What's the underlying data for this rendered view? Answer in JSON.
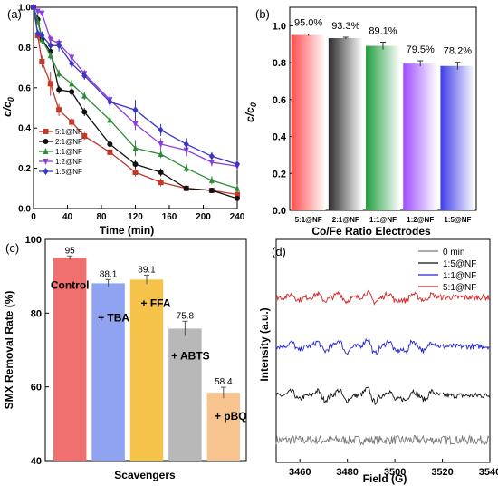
{
  "panels": {
    "a": {
      "label": "(a)",
      "legend": [
        "5:1@NF",
        "2:1@NF",
        "1:1@NF",
        "1:2@NF",
        "1:5@NF"
      ]
    },
    "b": {
      "label": "(b)"
    },
    "c": {
      "label": "(c)"
    },
    "d": {
      "label": "(d)",
      "legend": [
        "0 min",
        "1:5@NF",
        "1:1@NF",
        "5:1@NF"
      ]
    }
  },
  "chart_data": [
    {
      "id": "a",
      "type": "line",
      "xlabel": "Time (min)",
      "ylabel": "c/c0",
      "xlim": [
        0,
        240
      ],
      "ylim": [
        0,
        1.0
      ],
      "xticks": [
        0,
        40,
        80,
        120,
        160,
        200,
        240
      ],
      "yticks": [
        0.0,
        0.2,
        0.4,
        0.6,
        0.8,
        1.0
      ],
      "legend_position": "bottom-left",
      "x": [
        0,
        5,
        10,
        20,
        30,
        45,
        60,
        90,
        120,
        150,
        180,
        210,
        240
      ],
      "series": [
        {
          "name": "5:1@NF",
          "color": "#c0392b",
          "marker": "square",
          "values": [
            1.0,
            0.86,
            0.73,
            0.62,
            0.49,
            0.43,
            0.36,
            0.28,
            0.18,
            0.13,
            0.1,
            0.09,
            0.07
          ],
          "errors": [
            0,
            0.02,
            0.03,
            0.06,
            0.03,
            0.02,
            0.02,
            0.02,
            0.02,
            0.02,
            0.01,
            0.01,
            0.01
          ]
        },
        {
          "name": "2:1@NF",
          "color": "#111111",
          "marker": "circle",
          "values": [
            1.0,
            0.94,
            0.84,
            0.78,
            0.59,
            0.58,
            0.48,
            0.32,
            0.22,
            0.18,
            0.1,
            0.09,
            0.05
          ],
          "errors": [
            0,
            0.02,
            0.02,
            0.02,
            0.02,
            0.02,
            0.02,
            0.02,
            0.02,
            0.02,
            0.01,
            0.01,
            0.01
          ]
        },
        {
          "name": "1:1@NF",
          "color": "#2e8b3a",
          "marker": "triangle",
          "values": [
            1.0,
            0.93,
            0.84,
            0.76,
            0.67,
            0.62,
            0.56,
            0.44,
            0.3,
            0.27,
            0.2,
            0.14,
            0.1
          ],
          "errors": [
            0,
            0.02,
            0.02,
            0.02,
            0.02,
            0.02,
            0.02,
            0.03,
            0.04,
            0.02,
            0.02,
            0.02,
            0.02
          ]
        },
        {
          "name": "1:2@NF",
          "color": "#8a3ddc",
          "marker": "triangle-down",
          "values": [
            1.0,
            0.98,
            0.97,
            0.84,
            0.82,
            0.75,
            0.67,
            0.54,
            0.42,
            0.32,
            0.29,
            0.23,
            0.21
          ],
          "errors": [
            0,
            0.01,
            0.01,
            0.02,
            0.02,
            0.02,
            0.02,
            0.03,
            0.03,
            0.03,
            0.03,
            0.02,
            0.02
          ]
        },
        {
          "name": "1:5@NF",
          "color": "#3b35c4",
          "marker": "diamond",
          "values": [
            1.0,
            0.87,
            0.86,
            0.81,
            0.81,
            0.72,
            0.66,
            0.53,
            0.49,
            0.39,
            0.32,
            0.26,
            0.22
          ],
          "errors": [
            0,
            0.02,
            0.02,
            0.02,
            0.03,
            0.02,
            0.02,
            0.03,
            0.05,
            0.03,
            0.03,
            0.02,
            0.02
          ]
        }
      ]
    },
    {
      "id": "b",
      "type": "bar",
      "xlabel": "Co/Fe Ratio Electrodes",
      "ylabel": "c/c0",
      "ylim": [
        0,
        1.1
      ],
      "yticks": [
        0.0,
        0.2,
        0.4,
        0.6,
        0.8,
        1.0
      ],
      "categories": [
        "5:1@NF",
        "2:1@NF",
        "1:1@NF",
        "1:2@NF",
        "1:5@NF"
      ],
      "values": [
        0.95,
        0.933,
        0.891,
        0.795,
        0.782
      ],
      "errors": [
        0.005,
        0.005,
        0.02,
        0.015,
        0.02
      ],
      "data_labels": [
        "95.0%",
        "93.3%",
        "89.1%",
        "79.5%",
        "78.2%"
      ],
      "colors": [
        "#ff4d4d",
        "#2b2b2b",
        "#1f9d3d",
        "#9b4dff",
        "#3d3ae8"
      ]
    },
    {
      "id": "c",
      "type": "bar",
      "xlabel": "Scavengers",
      "ylabel": "SMX Removal Rate (%)",
      "ylim": [
        40,
        100
      ],
      "yticks": [
        40,
        60,
        80,
        100
      ],
      "categories": [
        "Control",
        "+ TBA",
        "+ FFA",
        "+ ABTS",
        "+ pBQ"
      ],
      "values": [
        95,
        88.1,
        89.1,
        75.8,
        58.4
      ],
      "errors": [
        0.5,
        1.0,
        1.2,
        2.0,
        1.5
      ],
      "data_labels": [
        "95",
        "88.1",
        "89.1",
        "75.8",
        "58.4"
      ],
      "colors": [
        "#f07070",
        "#8fa3f0",
        "#f5c24a",
        "#b8b8b8",
        "#f7c48f"
      ]
    },
    {
      "id": "d",
      "type": "line",
      "xlabel": "Field (G)",
      "ylabel": "Intensity (a.u.)",
      "xlim": [
        3450,
        3540
      ],
      "xticks": [
        3460,
        3480,
        3500,
        3520,
        3540
      ],
      "yticks_shown": false,
      "legend_position": "top-right",
      "series": [
        {
          "name": "0 min",
          "color": "#7a7a7a",
          "baseline": 0.1,
          "noise": 0.02,
          "peaks": []
        },
        {
          "name": "1:5@NF",
          "color": "#111111",
          "baseline": 0.3,
          "noise": 0.012,
          "peaks": [
            [
              3458,
              0.03
            ],
            [
              3469,
              0.035
            ],
            [
              3478,
              0.04
            ],
            [
              3490,
              0.05
            ],
            [
              3499,
              0.035
            ],
            [
              3506,
              -0.035
            ],
            [
              3514,
              -0.03
            ]
          ]
        },
        {
          "name": "1:1@NF",
          "color": "#2323d8",
          "baseline": 0.52,
          "noise": 0.012,
          "peaks": [
            [
              3458,
              0.03
            ],
            [
              3469,
              0.035
            ],
            [
              3478,
              0.045
            ],
            [
              3490,
              0.055
            ],
            [
              3499,
              0.04
            ],
            [
              3506,
              -0.04
            ],
            [
              3514,
              -0.035
            ]
          ]
        },
        {
          "name": "5:1@NF",
          "color": "#d42020",
          "baseline": 0.74,
          "noise": 0.012,
          "peaks": [
            [
              3458,
              0.02
            ],
            [
              3469,
              0.025
            ],
            [
              3478,
              0.03
            ],
            [
              3490,
              0.035
            ],
            [
              3499,
              0.03
            ],
            [
              3506,
              -0.025
            ],
            [
              3514,
              -0.02
            ]
          ]
        }
      ]
    }
  ]
}
